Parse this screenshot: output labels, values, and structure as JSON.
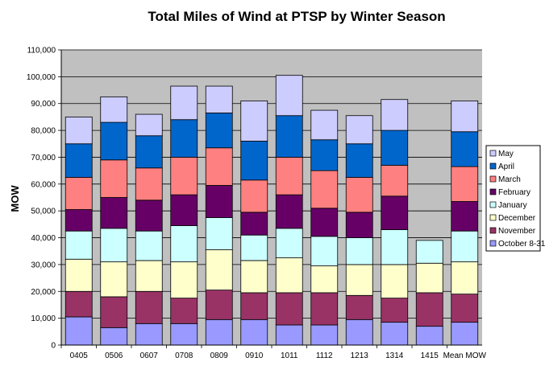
{
  "chart_data": {
    "type": "bar",
    "stacked": true,
    "title": "Total Miles of Wind at PTSP by Winter Season",
    "xlabel": "",
    "ylabel": "MOW",
    "ylim": [
      0,
      110000
    ],
    "yticks": [
      0,
      10000,
      20000,
      30000,
      40000,
      50000,
      60000,
      70000,
      80000,
      90000,
      100000,
      110000
    ],
    "ytick_labels": [
      "0",
      "10,000",
      "20,000",
      "30,000",
      "40,000",
      "50,000",
      "60,000",
      "70,000",
      "80,000",
      "90,000",
      "100,000",
      "110,000"
    ],
    "grid": true,
    "legend_position": "right",
    "categories": [
      "0405",
      "0506",
      "0607",
      "0708",
      "0809",
      "0910",
      "1011",
      "1112",
      "1213",
      "1314",
      "1415",
      "Mean MOW"
    ],
    "series": [
      {
        "name": "October 8-31",
        "color": "#9999ff",
        "values": [
          10500,
          6500,
          8000,
          8000,
          9500,
          9500,
          7500,
          7500,
          9500,
          8500,
          7000,
          8500
        ]
      },
      {
        "name": "November",
        "color": "#993366",
        "values": [
          9500,
          11500,
          12000,
          9500,
          11000,
          10000,
          12000,
          12000,
          9000,
          9000,
          12500,
          10500
        ]
      },
      {
        "name": "December",
        "color": "#ffffcc",
        "values": [
          12000,
          13000,
          11500,
          13500,
          15000,
          12000,
          13000,
          10000,
          11500,
          12500,
          11000,
          12000
        ]
      },
      {
        "name": "January",
        "color": "#ccffff",
        "values": [
          10500,
          12500,
          11000,
          13500,
          12000,
          9500,
          11000,
          11000,
          10000,
          13000,
          8500,
          11500
        ]
      },
      {
        "name": "February",
        "color": "#660066",
        "values": [
          8000,
          11500,
          11500,
          11500,
          12000,
          8500,
          12500,
          10500,
          9500,
          12500,
          0,
          11000
        ]
      },
      {
        "name": "March",
        "color": "#ff8080",
        "values": [
          12000,
          14000,
          12000,
          14000,
          14000,
          12000,
          14000,
          14000,
          13000,
          11500,
          0,
          13000
        ]
      },
      {
        "name": "April",
        "color": "#0066cc",
        "values": [
          12500,
          14000,
          12000,
          14000,
          13000,
          14500,
          15500,
          11500,
          12500,
          13000,
          0,
          13000
        ]
      },
      {
        "name": "May",
        "color": "#ccccff",
        "values": [
          10000,
          9500,
          8000,
          12500,
          10000,
          15000,
          15000,
          11000,
          10500,
          11500,
          0,
          11500
        ]
      }
    ]
  }
}
